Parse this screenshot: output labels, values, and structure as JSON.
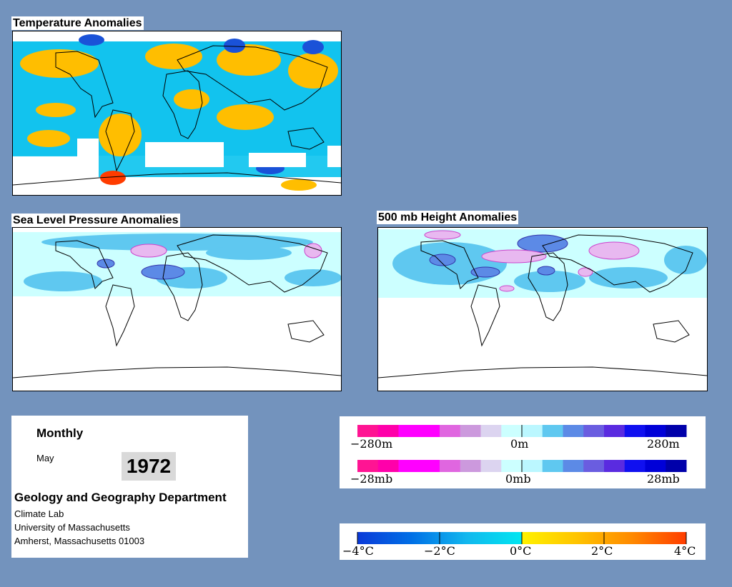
{
  "panels": {
    "temperature": {
      "title": "Temperature Anomalies"
    },
    "slp": {
      "title": "Sea Level Pressure Anomalies"
    },
    "height": {
      "title": "500 mb Height Anomalies"
    }
  },
  "info": {
    "frequency": "Monthly",
    "month": "May",
    "year": "1972",
    "department": "Geology and Geography Department",
    "lines": [
      "Climate Lab",
      "University of Massachusetts",
      "Amherst, Massachusetts 01003"
    ]
  },
  "legends": {
    "height": {
      "labels": [
        "−280m",
        "0m",
        "280m"
      ],
      "colors": [
        "#ff1493",
        "#ff00aa",
        "#ff00ff",
        "#ff00ff",
        "#e066e0",
        "#cc99dd",
        "#dcd4f0",
        "#ccffff",
        "#bbf7ff",
        "#5fc8f0",
        "#5c8ae6",
        "#6a5de0",
        "#5a2be0",
        "#1010f0",
        "#0000d8",
        "#0000aa"
      ]
    },
    "slp": {
      "labels": [
        "−28mb",
        "0mb",
        "28mb"
      ],
      "colors": [
        "#ff1493",
        "#ff00aa",
        "#ff00ff",
        "#ff00ff",
        "#e066e0",
        "#cc99dd",
        "#dcd4f0",
        "#ccffff",
        "#bbf7ff",
        "#5fc8f0",
        "#5c8ae6",
        "#6a5de0",
        "#5a2be0",
        "#1010f0",
        "#0000d8",
        "#0000aa"
      ]
    },
    "temperature": {
      "labels": [
        "−4°C",
        "−2°C",
        "0°C",
        "2°C",
        "4°C"
      ],
      "colors_cold": [
        "#0b3ad8",
        "#0070e6",
        "#12b8ee",
        "#00e6f0"
      ],
      "colors_warm": [
        "#fff200",
        "#ffc400",
        "#ff8a00",
        "#ff3c00"
      ]
    }
  },
  "colors": {
    "background": "#7393bd",
    "warm_anomaly": "#ffc000",
    "cold_anomaly": "#11c4ee",
    "pressure_positive": "#e8b8f0",
    "pressure_negative": "#5577ee"
  }
}
